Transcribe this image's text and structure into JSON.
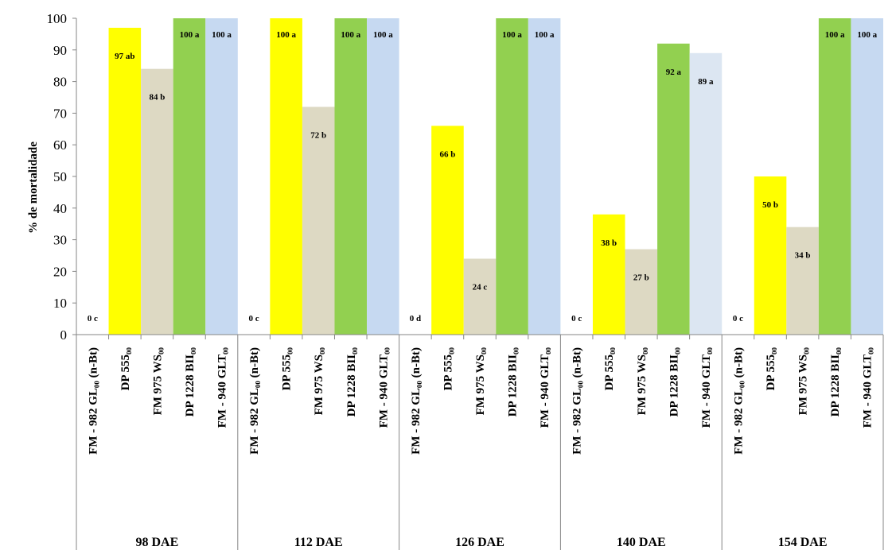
{
  "chart_data": {
    "type": "bar",
    "title": "",
    "ylabel": "% de mortalidade",
    "xlabel": "",
    "ylim": [
      0,
      100
    ],
    "yticks": [
      0,
      10,
      20,
      30,
      40,
      50,
      60,
      70,
      80,
      90,
      100
    ],
    "grid": false,
    "groups": [
      "98 DAE",
      "112 DAE",
      "126 DAE",
      "140 DAE",
      "154 DAE"
    ],
    "categories": [
      "FM - 982 GL₀₀ (n-Bt)",
      "DP 555₀₀",
      "FM 975 WS₀₀",
      "DP 1228 BII₀₀",
      "FM - 940 GLT₀₀"
    ],
    "category_colors": [
      "#ffffff",
      "#ffff00",
      "#ddd9c3",
      "#92d050",
      "#c6d9f1"
    ],
    "values": [
      [
        0,
        97,
        84,
        100,
        100
      ],
      [
        0,
        100,
        72,
        100,
        100
      ],
      [
        0,
        66,
        24,
        100,
        100
      ],
      [
        0,
        38,
        27,
        92,
        89
      ],
      [
        0,
        50,
        34,
        100,
        100
      ]
    ],
    "data_labels": [
      [
        "0 c",
        "97 ab",
        "84 b",
        "100 a",
        "100 a"
      ],
      [
        "0 c",
        "100 a",
        "72 b",
        "100 a",
        "100 a"
      ],
      [
        "0 d",
        "66 b",
        "24 c",
        "100 a",
        "100 a"
      ],
      [
        "0 c",
        "38 b",
        "27 b",
        "92 a",
        "89 a"
      ],
      [
        "0 c",
        "50 b",
        "34 b",
        "100 a",
        "100 a"
      ]
    ]
  }
}
